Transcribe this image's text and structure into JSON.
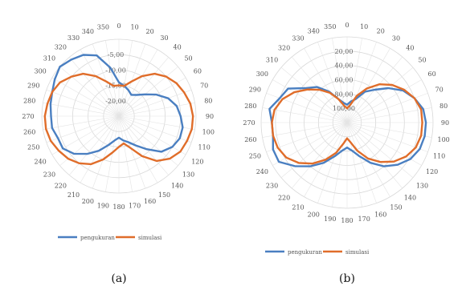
{
  "chart_data": [
    {
      "type": "polar",
      "caption": "(a)",
      "angles": [
        0,
        10,
        20,
        30,
        40,
        50,
        60,
        70,
        80,
        90,
        100,
        110,
        120,
        130,
        140,
        150,
        160,
        170,
        180,
        190,
        200,
        210,
        220,
        230,
        240,
        250,
        260,
        270,
        280,
        290,
        300,
        310,
        320,
        330,
        340,
        350
      ],
      "angle_labels": [
        "0",
        "10",
        "20",
        "30",
        "40",
        "50",
        "60",
        "70",
        "80",
        "90",
        "100",
        "110",
        "120",
        "130",
        "140",
        "150",
        "160",
        "170",
        "180",
        "190",
        "200",
        "210",
        "220",
        "230",
        "240",
        "250",
        "260",
        "270",
        "280",
        "290",
        "300",
        "310",
        "320",
        "330",
        "340",
        "350"
      ],
      "rlim": [
        -25,
        0
      ],
      "rings": [
        -20,
        -15,
        -10,
        -5
      ],
      "ring_labels": [
        "-20,00",
        "-15,00",
        "-10,00",
        "-5,00"
      ],
      "series": [
        {
          "name": "pengukuran",
          "color": "#4a7fc1",
          "values": [
            -14,
            -15,
            -16,
            -17,
            -16,
            -14,
            -11,
            -8,
            -6,
            -5,
            -4,
            -4,
            -5,
            -7,
            -11,
            -14,
            -16,
            -17,
            -18,
            -17,
            -15,
            -12,
            -9,
            -6,
            -4,
            -4,
            -3,
            -3,
            -2.5,
            -2,
            -1,
            0,
            -1,
            -2,
            -4,
            -9
          ]
        },
        {
          "name": "simulasi",
          "color": "#e06d2a",
          "values": [
            -15,
            -15,
            -13,
            -10,
            -7,
            -5,
            -3.5,
            -2.5,
            -1.5,
            -1,
            -1,
            -1.5,
            -2,
            -3.5,
            -6,
            -10,
            -14,
            -16,
            -15,
            -13,
            -10,
            -7,
            -5,
            -3.5,
            -2.5,
            -1.5,
            -1,
            -1,
            -1.5,
            -2,
            -3,
            -5,
            -7,
            -10,
            -13,
            -15
          ]
        }
      ]
    },
    {
      "type": "polar",
      "caption": "(b)",
      "angles": [
        0,
        10,
        20,
        30,
        40,
        50,
        60,
        70,
        80,
        90,
        100,
        110,
        120,
        130,
        140,
        150,
        160,
        170,
        180,
        190,
        200,
        210,
        220,
        230,
        240,
        250,
        260,
        270,
        280,
        290,
        300,
        310,
        320,
        330,
        340,
        350
      ],
      "angle_labels": [
        "0",
        "10",
        "20",
        "30",
        "40",
        "50",
        "60",
        "70",
        "80",
        "90",
        "100",
        "110",
        "120",
        "130",
        "140",
        "150",
        "160",
        "170",
        "180",
        "190",
        "200",
        "210",
        "220",
        "230",
        "240",
        "250",
        "260",
        "270",
        "280",
        "290",
        "300",
        "310",
        "320",
        "330",
        "340",
        "350"
      ],
      "rlim": [
        -120,
        0
      ],
      "rings": [
        -100,
        -80,
        -60,
        -40,
        -20
      ],
      "ring_labels": [
        "100,00",
        "80,00",
        "60,00",
        "40,00",
        "20,00"
      ],
      "series": [
        {
          "name": "pengukuran",
          "color": "#4a7fc1",
          "values": [
            -95,
            -90,
            -85,
            -70,
            -60,
            -45,
            -30,
            -20,
            -12,
            -10,
            -10,
            -12,
            -18,
            -28,
            -40,
            -55,
            -70,
            -80,
            -85,
            -80,
            -70,
            -55,
            -40,
            -25,
            -10,
            -10,
            -15,
            -15,
            -10,
            -20,
            -25,
            -45,
            -55,
            -70,
            -85,
            -92
          ]
        },
        {
          "name": "simulasi",
          "color": "#e06d2a",
          "values": [
            -100,
            -95,
            -80,
            -65,
            -50,
            -38,
            -28,
            -20,
            -15,
            -15,
            -15,
            -18,
            -25,
            -35,
            -48,
            -62,
            -78,
            -92,
            -98,
            -90,
            -75,
            -60,
            -45,
            -32,
            -22,
            -17,
            -15,
            -15,
            -17,
            -24,
            -35,
            -48,
            -60,
            -72,
            -85,
            -96
          ]
        }
      ]
    }
  ]
}
